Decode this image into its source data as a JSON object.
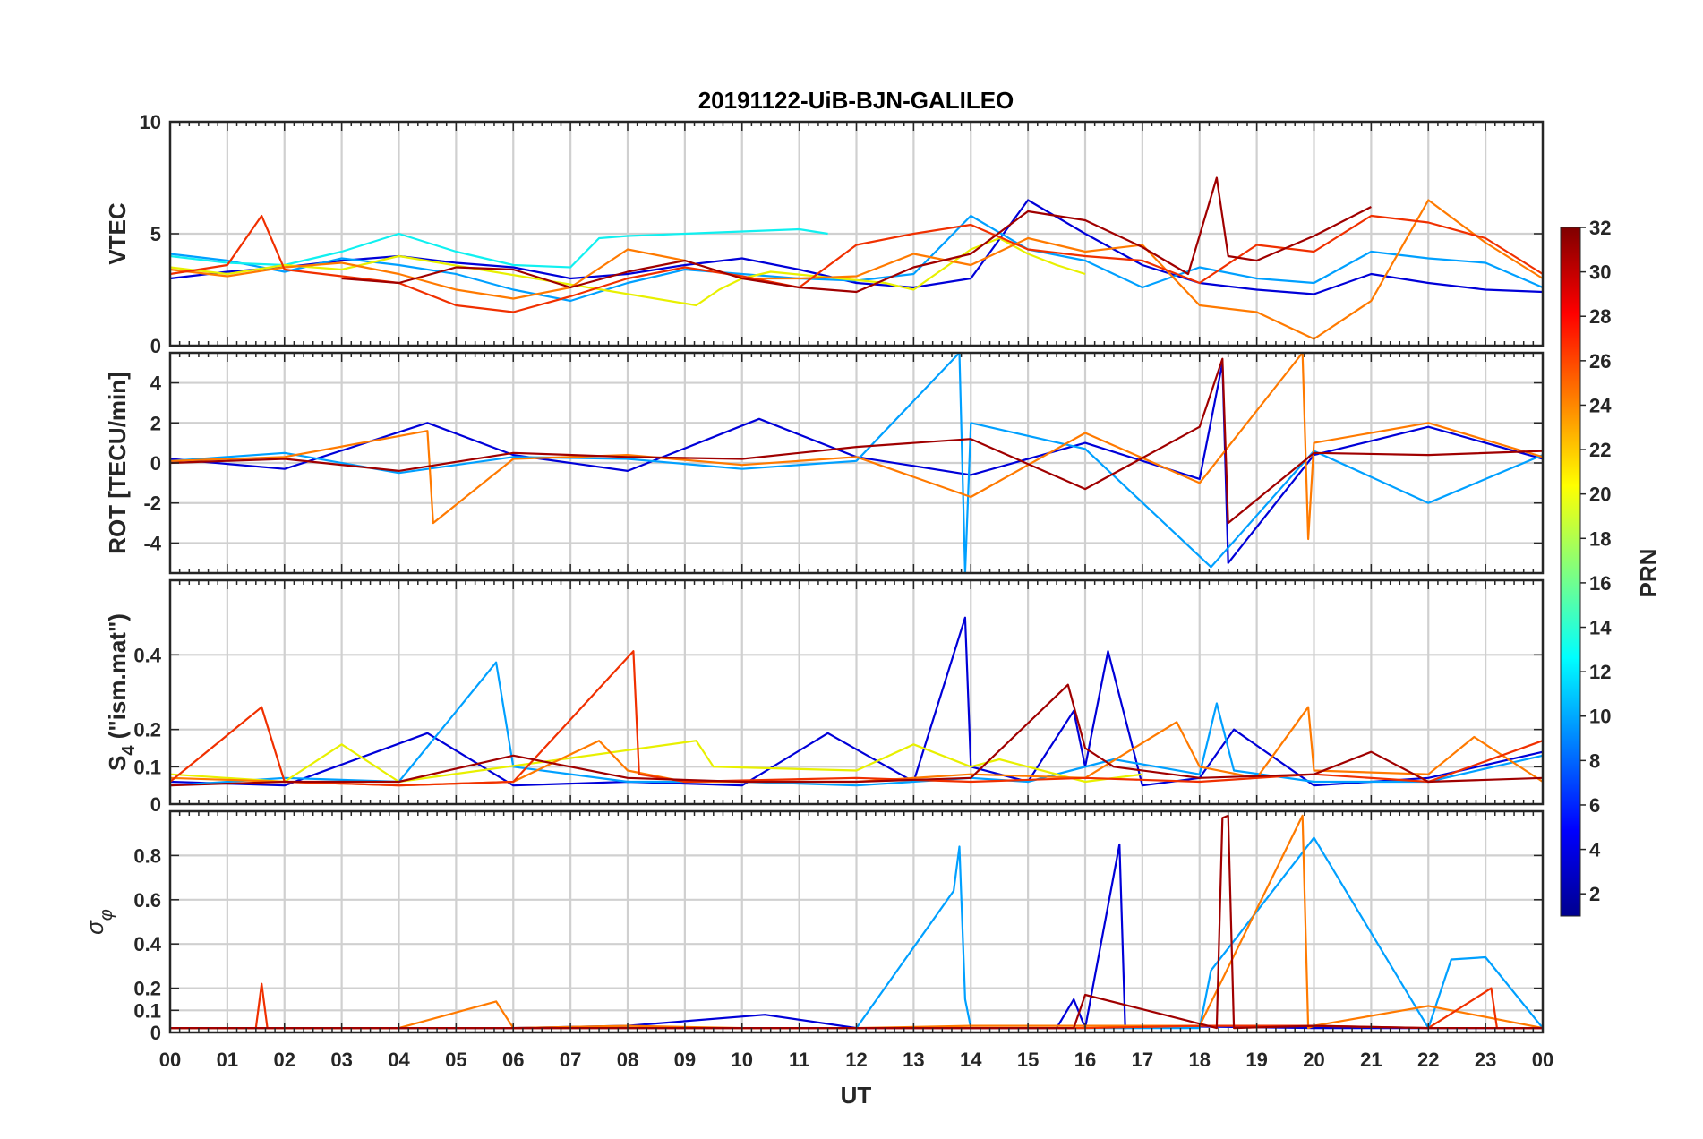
{
  "title": "20191122-UiB-BJN-GALILEO",
  "xlabel": "UT",
  "colorbar": {
    "label": "PRN",
    "range": [
      1,
      32
    ],
    "ticks": [
      "2",
      "4",
      "6",
      "8",
      "10",
      "12",
      "14",
      "16",
      "18",
      "20",
      "22",
      "24",
      "26",
      "28",
      "30",
      "32"
    ],
    "tick_values": [
      2,
      4,
      6,
      8,
      10,
      12,
      14,
      16,
      18,
      20,
      22,
      24,
      26,
      28,
      30,
      32
    ],
    "colormap": "jet"
  },
  "x_tick_labels": [
    "00",
    "01",
    "02",
    "03",
    "04",
    "05",
    "06",
    "07",
    "08",
    "09",
    "10",
    "11",
    "12",
    "13",
    "14",
    "15",
    "16",
    "17",
    "18",
    "19",
    "20",
    "21",
    "22",
    "23",
    "00"
  ],
  "grid": true,
  "chart_data": [
    {
      "type": "line",
      "panel": "VTEC",
      "ylabel": "VTEC",
      "xlim": [
        0,
        24
      ],
      "ylim": [
        0,
        10
      ],
      "yticks": [
        0,
        5,
        10
      ],
      "ytick_labels": [
        "0",
        "5",
        "10"
      ],
      "series": [
        {
          "prn": 3,
          "color": "#0000D8",
          "x": [
            0,
            1,
            2,
            3,
            4,
            5,
            6,
            7,
            8,
            9,
            10,
            11,
            12,
            13,
            14,
            15,
            16,
            17,
            18,
            19,
            20,
            21,
            22,
            23,
            24
          ],
          "y": [
            3.0,
            3.3,
            3.5,
            3.8,
            4.0,
            3.7,
            3.5,
            3.0,
            3.2,
            3.6,
            3.9,
            3.4,
            2.8,
            2.6,
            3.0,
            6.5,
            5.0,
            3.6,
            2.8,
            2.5,
            2.3,
            3.2,
            2.8,
            2.5,
            2.4
          ]
        },
        {
          "prn": 10,
          "color": "#00A0FF",
          "x": [
            0,
            1,
            2,
            3,
            4,
            5,
            6,
            7,
            8,
            9,
            10,
            11,
            12,
            13,
            14,
            15,
            16,
            17,
            18,
            19,
            20,
            21,
            22,
            23,
            24
          ],
          "y": [
            4.1,
            3.8,
            3.3,
            3.9,
            3.6,
            3.2,
            2.5,
            2.0,
            2.8,
            3.4,
            3.2,
            3.0,
            2.9,
            3.2,
            5.8,
            4.3,
            3.8,
            2.6,
            3.5,
            3.0,
            2.8,
            4.2,
            3.9,
            3.7,
            2.6
          ]
        },
        {
          "prn": 13,
          "color": "#10F0F0",
          "x": [
            0,
            1,
            2,
            3,
            4,
            5,
            6,
            7,
            7.5,
            8,
            9,
            10,
            11,
            11.5
          ],
          "y": [
            4.0,
            3.7,
            3.6,
            4.2,
            5.0,
            4.2,
            3.6,
            3.5,
            4.8,
            4.9,
            5.0,
            5.1,
            5.2,
            5.0
          ]
        },
        {
          "prn": 19,
          "color": "#E8F000",
          "x": [
            0,
            1,
            2,
            3,
            4,
            9.2,
            9.6,
            10,
            10.5,
            12.5,
            13,
            13.5,
            14,
            14.5,
            15,
            15.5,
            16
          ],
          "y": [
            3.5,
            3.2,
            3.6,
            3.4,
            4.0,
            1.8,
            2.5,
            3.0,
            3.3,
            2.8,
            2.5,
            3.4,
            4.3,
            4.8,
            4.1,
            3.6,
            3.2
          ]
        },
        {
          "prn": 24,
          "color": "#FF7A00",
          "x": [
            0,
            1,
            2,
            3,
            4,
            5,
            6,
            7,
            8,
            9,
            10,
            11,
            12,
            13,
            14,
            15,
            16,
            17,
            18,
            19,
            20,
            21,
            22,
            23,
            24
          ],
          "y": [
            3.4,
            3.1,
            3.5,
            3.7,
            3.2,
            2.5,
            2.1,
            2.6,
            4.3,
            3.8,
            3.0,
            3.0,
            3.1,
            4.1,
            3.6,
            4.8,
            4.2,
            4.5,
            1.8,
            1.5,
            0.3,
            2.0,
            6.5,
            4.6,
            3.0
          ]
        },
        {
          "prn": 27,
          "color": "#F03000",
          "x": [
            0,
            1,
            1.6,
            2,
            3,
            4,
            5,
            6,
            7,
            8,
            9,
            10,
            11,
            12,
            13,
            14,
            15,
            16,
            17,
            18,
            19,
            20,
            21,
            22,
            23,
            24
          ],
          "y": [
            3.2,
            3.6,
            5.8,
            3.4,
            3.1,
            2.8,
            1.8,
            1.5,
            2.2,
            3.0,
            3.5,
            3.1,
            2.6,
            4.5,
            5.0,
            5.4,
            4.3,
            4.0,
            3.8,
            2.8,
            4.5,
            4.2,
            5.8,
            5.5,
            4.8,
            3.2
          ]
        },
        {
          "prn": 31,
          "color": "#A00000",
          "x": [
            3,
            4,
            5,
            6,
            7,
            8,
            9,
            10,
            11,
            12,
            13,
            14,
            15,
            16,
            17,
            17.8,
            18.3,
            18.5,
            19,
            20,
            21
          ],
          "y": [
            3.0,
            2.8,
            3.5,
            3.4,
            2.6,
            3.3,
            3.8,
            3.0,
            2.6,
            2.4,
            3.5,
            4.1,
            6.0,
            5.6,
            4.4,
            3.2,
            7.5,
            4.0,
            3.8,
            4.9,
            6.2
          ]
        }
      ]
    },
    {
      "type": "line",
      "panel": "ROT",
      "ylabel": "ROT [TECU/min]",
      "xlim": [
        0,
        24
      ],
      "ylim": [
        -5.5,
        5.5
      ],
      "yticks": [
        -4,
        -2,
        0,
        2,
        4
      ],
      "ytick_labels": [
        "-4",
        "-2",
        "0",
        "2",
        "4"
      ],
      "series": [
        {
          "prn": 3,
          "color": "#0000D8",
          "x": [
            0,
            2,
            4.5,
            6,
            8,
            10.3,
            12,
            14,
            16,
            18,
            18.4,
            18.5,
            20,
            22,
            24
          ],
          "y": [
            0.2,
            -0.3,
            2.0,
            0.4,
            -0.4,
            2.2,
            0.3,
            -0.6,
            1.0,
            -0.8,
            5.0,
            -5.0,
            0.4,
            1.8,
            0.2
          ]
        },
        {
          "prn": 10,
          "color": "#00A0FF",
          "x": [
            0,
            2,
            4,
            6,
            8,
            10,
            12,
            13.8,
            13.9,
            14,
            16,
            18.2,
            20,
            22,
            24
          ],
          "y": [
            0.1,
            0.5,
            -0.5,
            0.3,
            0.2,
            -0.3,
            0.1,
            5.5,
            -5.5,
            2.0,
            0.7,
            -5.2,
            0.6,
            -2.0,
            0.4
          ]
        },
        {
          "prn": 24,
          "color": "#FF7A00",
          "x": [
            0,
            2,
            4.5,
            4.6,
            6,
            8,
            10,
            12,
            14,
            16,
            18,
            19.8,
            19.9,
            20,
            22,
            24
          ],
          "y": [
            0.1,
            0.3,
            1.6,
            -3.0,
            0.2,
            0.4,
            -0.1,
            0.3,
            -1.7,
            1.5,
            -1.0,
            5.5,
            -3.8,
            1.0,
            2.0,
            0.3
          ]
        },
        {
          "prn": 31,
          "color": "#A00000",
          "x": [
            0,
            2,
            4,
            6,
            8,
            10,
            12,
            14,
            16,
            18,
            18.4,
            18.5,
            20,
            22,
            24
          ],
          "y": [
            0.0,
            0.2,
            -0.4,
            0.5,
            0.3,
            0.2,
            0.8,
            1.2,
            -1.3,
            1.8,
            5.2,
            -3.0,
            0.5,
            0.4,
            0.6
          ]
        }
      ]
    },
    {
      "type": "line",
      "panel": "S4",
      "ylabel": "S_4 (\"ism.mat\")",
      "ylabel_main": "S",
      "ylabel_sub": "4",
      "ylabel_rest": " (\"ism.mat\")",
      "xlim": [
        0,
        24
      ],
      "ylim": [
        0,
        0.6
      ],
      "yticks": [
        0,
        0.1,
        0.2,
        0.4
      ],
      "ytick_labels": [
        "0",
        "0.1",
        "0.2",
        "0.4"
      ],
      "series": [
        {
          "prn": 3,
          "color": "#0000D8",
          "x": [
            0,
            2,
            4.5,
            6,
            8,
            10,
            11.5,
            13,
            13.9,
            14,
            15,
            15.8,
            16,
            16.4,
            17,
            18,
            18.6,
            20,
            22,
            24
          ],
          "y": [
            0.06,
            0.05,
            0.19,
            0.05,
            0.06,
            0.05,
            0.19,
            0.06,
            0.5,
            0.1,
            0.06,
            0.25,
            0.1,
            0.41,
            0.05,
            0.07,
            0.2,
            0.05,
            0.07,
            0.14
          ]
        },
        {
          "prn": 10,
          "color": "#00A0FF",
          "x": [
            0,
            2,
            4,
            5.7,
            6,
            8,
            10,
            12,
            14,
            15,
            16.5,
            18,
            18.3,
            18.6,
            20,
            22,
            24
          ],
          "y": [
            0.05,
            0.07,
            0.06,
            0.38,
            0.1,
            0.06,
            0.06,
            0.05,
            0.07,
            0.06,
            0.12,
            0.08,
            0.27,
            0.09,
            0.06,
            0.06,
            0.13
          ]
        },
        {
          "prn": 19,
          "color": "#E8F000",
          "x": [
            0,
            2,
            3,
            4,
            9.2,
            9.5,
            12,
            13,
            14,
            14.5,
            16,
            17
          ],
          "y": [
            0.08,
            0.06,
            0.16,
            0.06,
            0.17,
            0.1,
            0.09,
            0.16,
            0.1,
            0.12,
            0.06,
            0.08
          ]
        },
        {
          "prn": 24,
          "color": "#FF7A00",
          "x": [
            0,
            2,
            4,
            6,
            7.5,
            8,
            9,
            12,
            14,
            16,
            17.6,
            18,
            19,
            19.9,
            20,
            22,
            22.8,
            24
          ],
          "y": [
            0.07,
            0.06,
            0.05,
            0.06,
            0.17,
            0.09,
            0.06,
            0.06,
            0.08,
            0.07,
            0.22,
            0.1,
            0.07,
            0.26,
            0.09,
            0.08,
            0.18,
            0.06
          ]
        },
        {
          "prn": 27,
          "color": "#F03000",
          "x": [
            0,
            1.6,
            2,
            4,
            6,
            8.1,
            8.2,
            9,
            12,
            14,
            16,
            18,
            20,
            22,
            24
          ],
          "y": [
            0.06,
            0.26,
            0.06,
            0.05,
            0.06,
            0.41,
            0.08,
            0.06,
            0.07,
            0.06,
            0.07,
            0.06,
            0.08,
            0.06,
            0.17
          ]
        },
        {
          "prn": 31,
          "color": "#A00000",
          "x": [
            0,
            2,
            4,
            6,
            8,
            10,
            12,
            14,
            15.7,
            16,
            16.5,
            18,
            20,
            21,
            22,
            24
          ],
          "y": [
            0.05,
            0.06,
            0.06,
            0.13,
            0.07,
            0.06,
            0.06,
            0.07,
            0.32,
            0.15,
            0.1,
            0.07,
            0.08,
            0.14,
            0.06,
            0.07
          ]
        }
      ]
    },
    {
      "type": "line",
      "panel": "sigma_phi",
      "ylabel": "σ_φ",
      "ylabel_main": "σ",
      "ylabel_sub": "φ",
      "xlim": [
        0,
        24
      ],
      "ylim": [
        0,
        1
      ],
      "yticks": [
        0,
        0.1,
        0.2,
        0.4,
        0.6,
        0.8
      ],
      "ytick_labels": [
        "0",
        "0.1",
        "0.2",
        "0.4",
        "0.6",
        "0.8"
      ],
      "series": [
        {
          "prn": 3,
          "color": "#0000D8",
          "x": [
            0,
            2,
            4,
            6,
            8,
            10.4,
            12,
            15.5,
            15.8,
            16,
            16.6,
            16.7,
            17,
            20,
            22,
            24
          ],
          "y": [
            0.02,
            0.02,
            0.02,
            0.02,
            0.03,
            0.08,
            0.02,
            0.02,
            0.15,
            0.02,
            0.85,
            0.02,
            0.03,
            0.02,
            0.02,
            0.02
          ]
        },
        {
          "prn": 10,
          "color": "#00A0FF",
          "x": [
            0,
            2,
            4,
            6,
            8,
            10,
            12,
            13.7,
            13.8,
            13.9,
            14,
            16,
            18,
            18.2,
            20,
            22,
            22.4,
            23,
            24
          ],
          "y": [
            0.02,
            0.02,
            0.02,
            0.02,
            0.02,
            0.02,
            0.02,
            0.64,
            0.84,
            0.15,
            0.02,
            0.02,
            0.02,
            0.28,
            0.88,
            0.02,
            0.33,
            0.34,
            0.02
          ]
        },
        {
          "prn": 24,
          "color": "#FF7A00",
          "x": [
            0,
            2,
            4,
            5.7,
            6,
            8,
            10,
            12,
            14,
            16,
            18,
            19.8,
            19.9,
            20,
            22,
            24
          ],
          "y": [
            0.02,
            0.02,
            0.02,
            0.14,
            0.02,
            0.03,
            0.02,
            0.02,
            0.03,
            0.03,
            0.03,
            0.98,
            0.02,
            0.03,
            0.12,
            0.02
          ]
        },
        {
          "prn": 27,
          "color": "#F03000",
          "x": [
            0,
            1.5,
            1.6,
            1.7,
            4,
            6,
            8,
            12,
            16,
            18,
            20,
            22,
            23.1,
            23.2,
            24
          ],
          "y": [
            0.02,
            0.02,
            0.22,
            0.02,
            0.02,
            0.02,
            0.02,
            0.02,
            0.02,
            0.03,
            0.03,
            0.02,
            0.2,
            0.02,
            0.02
          ]
        },
        {
          "prn": 31,
          "color": "#A00000",
          "x": [
            0,
            4,
            8,
            12,
            15.8,
            16,
            18.3,
            18.4,
            18.5,
            18.6,
            20,
            22,
            24
          ],
          "y": [
            0.02,
            0.02,
            0.02,
            0.02,
            0.02,
            0.17,
            0.02,
            0.97,
            0.98,
            0.02,
            0.03,
            0.02,
            0.02
          ]
        }
      ]
    }
  ]
}
